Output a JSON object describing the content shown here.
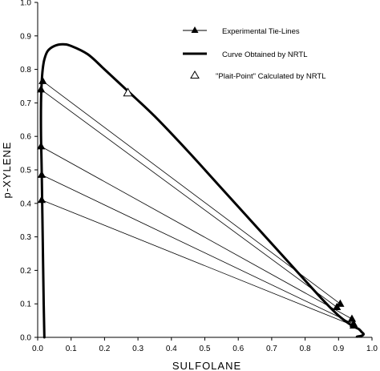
{
  "chart_data": {
    "type": "line",
    "xlabel": "SULFOLANE",
    "ylabel": "p-XYLENE",
    "xlim": [
      0,
      1
    ],
    "ylim": [
      0,
      1
    ],
    "x_ticks": [
      "0.0",
      "0.1",
      "0.2",
      "0.3",
      "0.4",
      "0.5",
      "0.6",
      "0.7",
      "0.8",
      "0.9",
      "1.0"
    ],
    "y_ticks": [
      "0.0",
      "0.1",
      "0.2",
      "0.3",
      "0.4",
      "0.5",
      "0.6",
      "0.7",
      "0.8",
      "0.9",
      "1.0"
    ],
    "grid": false,
    "legend_position": "top-right",
    "legend": {
      "tie_lines": "Experimental Tie-Lines",
      "nrtl_curve": "Curve Obtained by NRTL",
      "plait_point": "\"Plait-Point\" Calculated by NRTL"
    },
    "nrtl_curve": {
      "x": [
        0.02,
        0.018,
        0.015,
        0.012,
        0.01,
        0.01,
        0.012,
        0.015,
        0.02,
        0.03,
        0.05,
        0.075,
        0.1,
        0.15,
        0.2,
        0.27,
        0.35,
        0.45,
        0.55,
        0.65,
        0.75,
        0.85,
        0.9,
        0.94,
        0.96,
        0.97,
        0.975,
        0.97,
        0.96,
        0.955
      ],
      "y": [
        0.0,
        0.1,
        0.3,
        0.5,
        0.6,
        0.7,
        0.76,
        0.8,
        0.83,
        0.855,
        0.87,
        0.875,
        0.87,
        0.845,
        0.8,
        0.735,
        0.66,
        0.555,
        0.445,
        0.335,
        0.225,
        0.115,
        0.065,
        0.035,
        0.025,
        0.015,
        0.01,
        0.005,
        0.003,
        0.002
      ]
    },
    "tie_lines": [
      {
        "raffinate": [
          0.012,
          0.41
        ],
        "extract": [
          0.945,
          0.035
        ]
      },
      {
        "raffinate": [
          0.012,
          0.485
        ],
        "extract": [
          0.945,
          0.04
        ]
      },
      {
        "raffinate": [
          0.01,
          0.57
        ],
        "extract": [
          0.94,
          0.055
        ]
      },
      {
        "raffinate": [
          0.01,
          0.74
        ],
        "extract": [
          0.895,
          0.09
        ]
      },
      {
        "raffinate": [
          0.015,
          0.765
        ],
        "extract": [
          0.905,
          0.1
        ]
      }
    ],
    "plait_point": {
      "x": 0.27,
      "y": 0.73
    }
  }
}
